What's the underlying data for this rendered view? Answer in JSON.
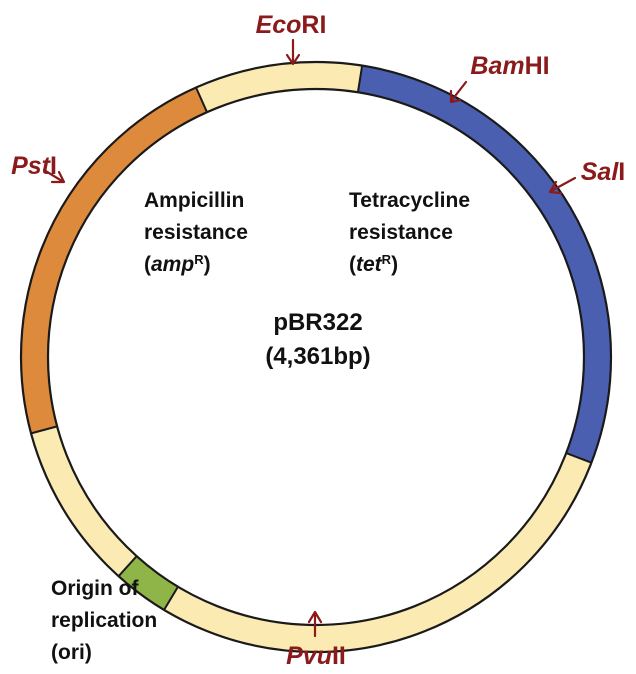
{
  "plasmid": {
    "name": "pBR322",
    "size": "(4,361bp)"
  },
  "colors": {
    "tet": "#4a5fb0",
    "amp": "#de8a3c",
    "ori": "#8fb548",
    "backbone": "#fbeab2",
    "site_text": "#8b1a1a",
    "outline": "#1a1a1a"
  },
  "restriction_sites": [
    {
      "id": "ecori",
      "italic": "Eco",
      "suffix": "RI"
    },
    {
      "id": "bamhi",
      "italic": "Bam",
      "suffix": "HI"
    },
    {
      "id": "sali",
      "italic": "Sal",
      "suffix": "I"
    },
    {
      "id": "psti",
      "italic": "Pst",
      "suffix": "I"
    },
    {
      "id": "pvuii",
      "italic": "Pvu",
      "suffix": "II"
    }
  ],
  "regions": {
    "amp": {
      "line1": "Ampicillin",
      "line2": "resistance",
      "open": "(",
      "gene": "amp",
      "sup": "R",
      "close": ")"
    },
    "tet": {
      "line1": "Tetracycline",
      "line2": "resistance",
      "open": "(",
      "gene": "tet",
      "sup": "R",
      "close": ")"
    },
    "ori": {
      "line1": "Origin of",
      "line2": "replication",
      "line3": "(ori)"
    }
  }
}
